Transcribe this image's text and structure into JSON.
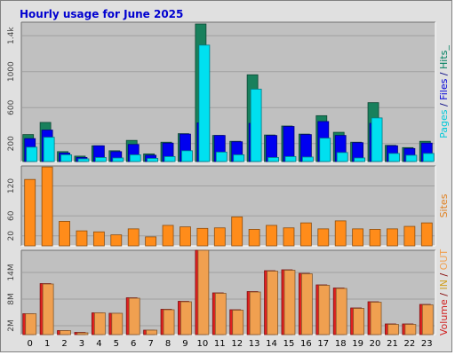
{
  "chart_data": {
    "title": "Hourly usage for June 2025",
    "categories": [
      "0",
      "1",
      "2",
      "3",
      "4",
      "5",
      "6",
      "7",
      "8",
      "9",
      "10",
      "11",
      "12",
      "13",
      "14",
      "15",
      "16",
      "17",
      "18",
      "19",
      "20",
      "21",
      "22",
      "23"
    ],
    "panels": [
      {
        "type": "bar",
        "ylim": [
          0,
          1550
        ],
        "ticks": [
          200,
          600,
          1000,
          "1.4k"
        ],
        "tick_values": [
          200,
          600,
          1000,
          1400
        ],
        "legend": [
          {
            "text": "Pages",
            "color": "#00c8d8"
          },
          {
            "text": " / ",
            "color": "#000080"
          },
          {
            "text": "Files",
            "color": "#0000d8"
          },
          {
            "text": " / ",
            "color": "#000080"
          },
          {
            "text": "Hits",
            "color": "#008060"
          },
          {
            "text": "_",
            "color": "#008060"
          }
        ],
        "series": [
          {
            "name": "Hits",
            "color": "#18805c",
            "values": [
              300,
              435,
              110,
              60,
              175,
              120,
              235,
              85,
              215,
              310,
              1530,
              290,
              225,
              965,
              295,
              395,
              305,
              510,
              325,
              215,
              655,
              180,
              155,
              225
            ]
          },
          {
            "name": "Files",
            "color": "#0000f0",
            "values": [
              255,
              350,
              95,
              45,
              175,
              110,
              190,
              70,
              205,
              305,
              430,
              290,
              220,
              425,
              290,
              390,
              300,
              445,
              290,
              210,
              425,
              175,
              145,
              205
            ]
          },
          {
            "name": "Pages",
            "color": "#00e0f0",
            "values": [
              160,
              270,
              75,
              30,
              45,
              40,
              75,
              35,
              55,
              120,
              1295,
              105,
              75,
              805,
              45,
              55,
              50,
              260,
              100,
              40,
              485,
              90,
              70,
              90
            ]
          }
        ]
      },
      {
        "type": "bar",
        "ylim": [
          0,
          160
        ],
        "ticks": [
          20,
          60,
          120
        ],
        "tick_values": [
          20,
          60,
          120
        ],
        "legend": [
          {
            "text": "Sites",
            "color": "#e08020"
          }
        ],
        "series": [
          {
            "name": "Sites",
            "color": "#ff8c1a",
            "values": [
              133,
              158,
              49,
              30,
              28,
              22,
              34,
              18,
              41,
              38,
              35,
              36,
              58,
              33,
              41,
              36,
              46,
              34,
              50,
              34,
              33,
              34,
              39,
              46
            ]
          }
        ]
      },
      {
        "type": "bar",
        "ylim": [
          0,
          19000000
        ],
        "ticks": [
          "2M",
          "8M",
          "14M"
        ],
        "tick_values": [
          2000000,
          8000000,
          14000000
        ],
        "legend": [
          {
            "text": "Volume",
            "color": "#d02020"
          },
          {
            "text": " / ",
            "color": "#800000"
          },
          {
            "text": "IN",
            "color": "#d0a020"
          },
          {
            "text": " / ",
            "color": "#800000"
          },
          {
            "text": "OUT",
            "color": "#f0a050"
          }
        ],
        "series": [
          {
            "name": "Volume",
            "color": "#e02020",
            "values": [
              4700000,
              11500000,
              900000,
              500000,
              4900000,
              4800000,
              8300000,
              1000000,
              5700000,
              7500000,
              19800000,
              9400000,
              5600000,
              9700000,
              14400000,
              14600000,
              13800000,
              11200000,
              10500000,
              6000000,
              7400000,
              2400000,
              2400000,
              6800000
            ]
          },
          {
            "name": "IN",
            "color": "#d0a020",
            "values": [
              0,
              0,
              0,
              0,
              0,
              0,
              0,
              0,
              0,
              0,
              0,
              0,
              0,
              0,
              0,
              0,
              0,
              0,
              0,
              0,
              0,
              0,
              0,
              0
            ]
          },
          {
            "name": "OUT",
            "color": "#f0a050",
            "values": [
              4700000,
              11400000,
              900000,
              400000,
              4900000,
              4800000,
              8200000,
              1000000,
              5600000,
              7400000,
              19400000,
              9300000,
              5500000,
              9600000,
              14300000,
              14500000,
              13700000,
              11100000,
              10400000,
              5900000,
              7300000,
              2300000,
              2300000,
              6700000
            ]
          }
        ]
      }
    ],
    "colors": {
      "frame_bg": "#e0e0e0",
      "plot_bg": "#c0c0c0",
      "gridline": "#a0a0a0",
      "title": "#0000d0"
    }
  }
}
